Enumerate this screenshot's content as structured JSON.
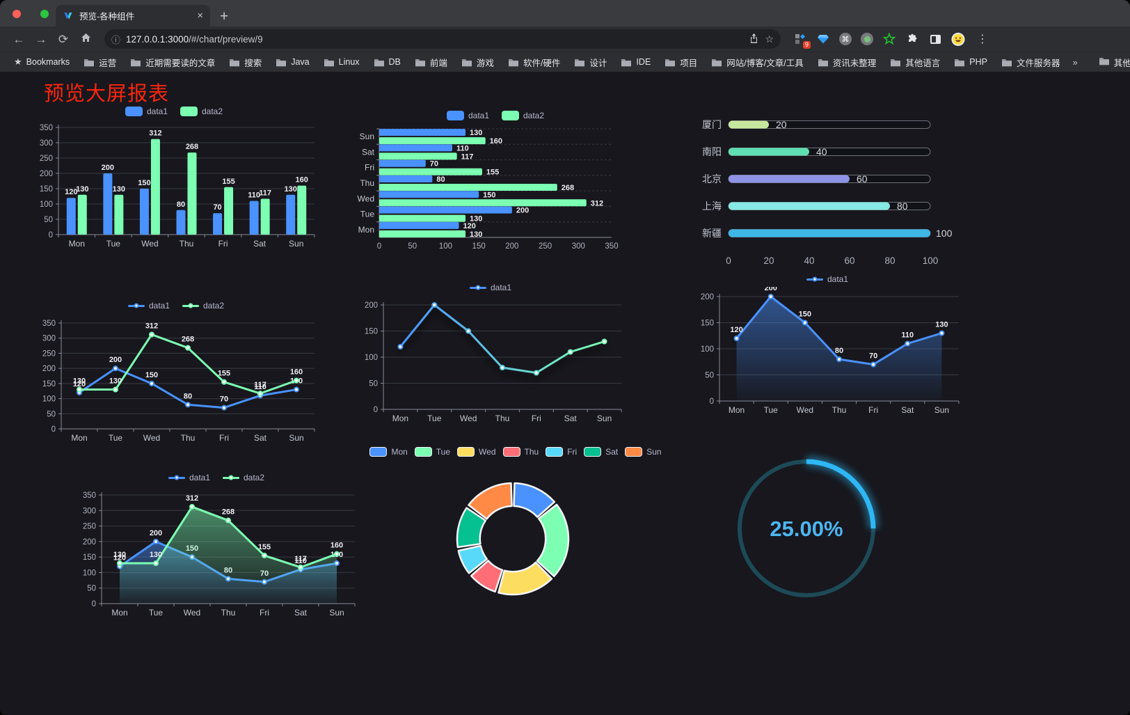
{
  "browser": {
    "tab_title": "预览-各种组件",
    "tab_close": "×",
    "new_tab": "+",
    "back_icon": "←",
    "forward_icon": "→",
    "reload_icon": "⟳",
    "info_icon": "ⓘ",
    "star_icon": "☆",
    "menu_icon": "⋮",
    "url_host": "127.0.0.1:3000",
    "url_path": "/#/chart/preview/9",
    "extension_badge": "9",
    "command_glyph": "⌘",
    "bookmarks_root_label": "Bookmarks",
    "bookmark_folders": [
      "运营",
      "近期需要读的文章",
      "搜索",
      "Java",
      "Linux",
      "DB",
      "前端",
      "游戏",
      "软件/硬件",
      "设计",
      "IDE",
      "项目",
      "网站/博客/文章/工具",
      "资讯未整理",
      "其他语言",
      "PHP",
      "文件服务器"
    ],
    "bookmarks_overflow": "»",
    "other_bookmarks_label": "其他书签"
  },
  "page": {
    "title": "预览大屏报表"
  },
  "chart_data": [
    {
      "id": "grouped-bar-chart",
      "type": "bar",
      "categories": [
        "Mon",
        "Tue",
        "Wed",
        "Thu",
        "Fri",
        "Sat",
        "Sun"
      ],
      "series": [
        {
          "name": "data1",
          "color": "#4992ff",
          "values": [
            120,
            200,
            150,
            80,
            70,
            110,
            130
          ]
        },
        {
          "name": "data2",
          "color": "#7cffb2",
          "values": [
            130,
            130,
            312,
            268,
            155,
            117,
            160
          ]
        }
      ],
      "ylim": [
        0,
        350
      ],
      "ystep": 50,
      "show_labels": true,
      "grid": true,
      "legend_position": "top"
    },
    {
      "id": "horizontal-bar-chart",
      "type": "bar-horizontal",
      "categories": [
        "Mon",
        "Tue",
        "Wed",
        "Thu",
        "Fri",
        "Sat",
        "Sun"
      ],
      "series": [
        {
          "name": "data1",
          "color": "#4992ff",
          "values": [
            120,
            200,
            150,
            80,
            70,
            110,
            130
          ]
        },
        {
          "name": "data2",
          "color": "#7cffb2",
          "values": [
            130,
            130,
            312,
            268,
            155,
            117,
            160
          ]
        }
      ],
      "xlim": [
        0,
        350
      ],
      "xstep": 50,
      "show_labels": true,
      "grid": true,
      "legend_position": "top"
    },
    {
      "id": "city-progress-bars",
      "type": "bar-horizontal-progress",
      "items": [
        {
          "label": "厦门",
          "value": 20,
          "color": "#c8e79e"
        },
        {
          "label": "南阳",
          "value": 40,
          "color": "#5fe0b2"
        },
        {
          "label": "北京",
          "value": 60,
          "color": "#8f93e6"
        },
        {
          "label": "上海",
          "value": 80,
          "color": "#86e9e3"
        },
        {
          "label": "新疆",
          "value": 100,
          "color": "#3db7e6"
        }
      ],
      "xlim": [
        0,
        100
      ],
      "xstep": 20
    },
    {
      "id": "two-series-line-chart",
      "type": "line",
      "categories": [
        "Mon",
        "Tue",
        "Wed",
        "Thu",
        "Fri",
        "Sat",
        "Sun"
      ],
      "series": [
        {
          "name": "data1",
          "color": "#4992ff",
          "values": [
            120,
            200,
            150,
            80,
            70,
            110,
            130
          ]
        },
        {
          "name": "data2",
          "color": "#7cffb2",
          "values": [
            130,
            130,
            312,
            268,
            155,
            117,
            160
          ]
        }
      ],
      "ylim": [
        0,
        350
      ],
      "ystep": 50,
      "show_labels": true,
      "grid": true,
      "legend_position": "top"
    },
    {
      "id": "gradient-line-chart",
      "type": "line",
      "categories": [
        "Mon",
        "Tue",
        "Wed",
        "Thu",
        "Fri",
        "Sat",
        "Sun"
      ],
      "series": [
        {
          "name": "data1",
          "color": "#4992ff",
          "color_end": "#7cffb2",
          "gradient": true,
          "shadow": true,
          "values": [
            120,
            200,
            150,
            80,
            70,
            110,
            130
          ]
        }
      ],
      "ylim": [
        0,
        200
      ],
      "ystep": 50,
      "show_labels": false,
      "grid": true,
      "legend_position": "top"
    },
    {
      "id": "area-line-chart",
      "type": "area",
      "categories": [
        "Mon",
        "Tue",
        "Wed",
        "Thu",
        "Fri",
        "Sat",
        "Sun"
      ],
      "series": [
        {
          "name": "data1",
          "color": "#4992ff",
          "area": true,
          "values": [
            120,
            200,
            150,
            80,
            70,
            110,
            130
          ]
        }
      ],
      "ylim": [
        0,
        200
      ],
      "ystep": 50,
      "show_labels": true,
      "grid": true,
      "legend_position": "top"
    },
    {
      "id": "two-series-area-chart",
      "type": "area",
      "categories": [
        "Mon",
        "Tue",
        "Wed",
        "Thu",
        "Fri",
        "Sat",
        "Sun"
      ],
      "series": [
        {
          "name": "data1",
          "color": "#4992ff",
          "area": true,
          "values": [
            120,
            200,
            150,
            80,
            70,
            110,
            130
          ]
        },
        {
          "name": "data2",
          "color": "#7cffb2",
          "area": true,
          "values": [
            130,
            130,
            312,
            268,
            155,
            117,
            160
          ]
        }
      ],
      "ylim": [
        0,
        350
      ],
      "ystep": 50,
      "show_labels": true,
      "grid": true,
      "legend_position": "top"
    },
    {
      "id": "donut-chart",
      "type": "pie",
      "labels": [
        "Mon",
        "Tue",
        "Wed",
        "Thu",
        "Fri",
        "Sat",
        "Sun"
      ],
      "values": [
        120,
        200,
        150,
        80,
        70,
        110,
        130
      ],
      "colors": [
        "#4992ff",
        "#7cffb2",
        "#fddd60",
        "#ff6e76",
        "#58d9f9",
        "#05c091",
        "#ff8a45"
      ],
      "inner_radius_ratio": 0.59,
      "legend_position": "top"
    },
    {
      "id": "gauge-chart",
      "type": "gauge",
      "percent": 25,
      "display": "25.00%",
      "color": "#2eb7f4",
      "track_color": "#1d4a57",
      "text_color": "#4db6f2"
    }
  ]
}
